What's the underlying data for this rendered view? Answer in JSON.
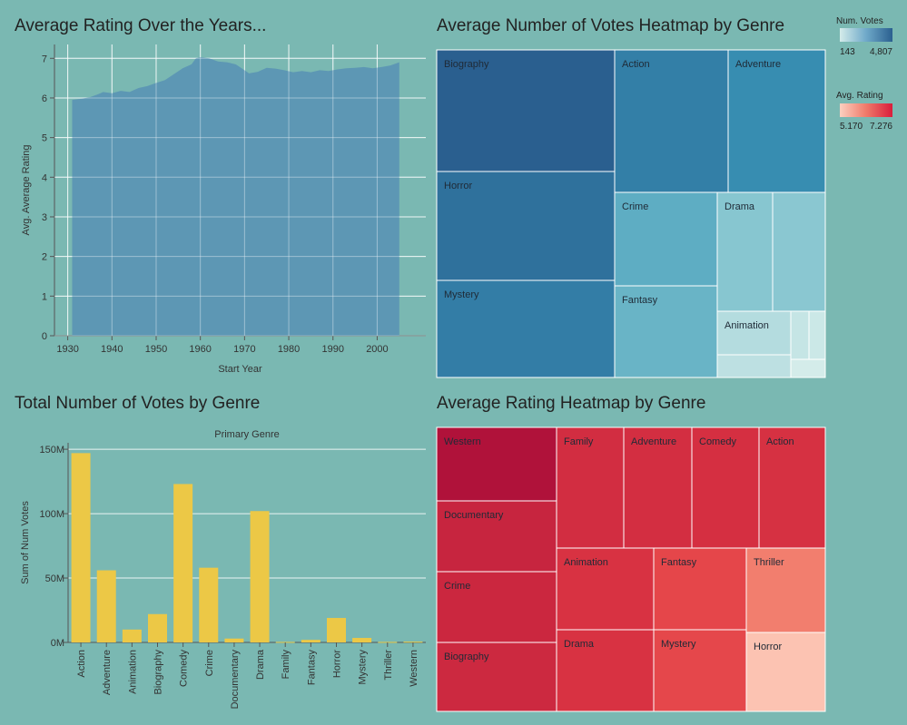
{
  "panels": {
    "rating_over_years": {
      "title": "Average Rating Over the Years..."
    },
    "votes_heatmap": {
      "title": "Average Number of Votes Heatmap by Genre"
    },
    "votes_by_genre": {
      "title": "Total Number of Votes by Genre"
    },
    "rating_heatmap": {
      "title": "Average Rating Heatmap by Genre"
    }
  },
  "legends": {
    "num_votes": {
      "title": "Num. Votes",
      "min_label": "143",
      "max_label": "4,807",
      "color_low": "#d4ecea",
      "color_high": "#2a5f8f"
    },
    "avg_rating": {
      "title": "Avg. Rating",
      "min_label": "5.170",
      "max_label": "7.276",
      "color_low": "#fcd0c0",
      "color_high": "#d91d3c"
    }
  },
  "chart_data": [
    {
      "type": "area",
      "title": "Average Rating Over the Years...",
      "xlabel": "Start Year",
      "ylabel": "Avg. Average Rating",
      "xlim": [
        1927,
        2011
      ],
      "ylim": [
        0,
        7.35
      ],
      "xticks": [
        "1930",
        "1940",
        "1950",
        "1960",
        "1970",
        "1980",
        "1990",
        "2000"
      ],
      "yticks": [
        "0",
        "1",
        "2",
        "3",
        "4",
        "5",
        "6",
        "7"
      ],
      "grid": true,
      "color": "#5a93b4",
      "x": [
        1931,
        1933,
        1935,
        1937,
        1938,
        1940,
        1942,
        1944,
        1946,
        1948,
        1950,
        1952,
        1954,
        1956,
        1958,
        1959,
        1960,
        1962,
        1964,
        1966,
        1968,
        1970,
        1971,
        1973,
        1975,
        1977,
        1979,
        1981,
        1983,
        1985,
        1987,
        1989,
        1991,
        1993,
        1995,
        1997,
        1999,
        2001,
        2003,
        2005
      ],
      "y": [
        5.95,
        5.98,
        6.02,
        6.1,
        6.15,
        6.12,
        6.18,
        6.15,
        6.25,
        6.3,
        6.38,
        6.45,
        6.6,
        6.75,
        6.85,
        7.0,
        7.03,
        7.0,
        6.92,
        6.9,
        6.85,
        6.7,
        6.62,
        6.66,
        6.76,
        6.74,
        6.7,
        6.65,
        6.68,
        6.65,
        6.7,
        6.68,
        6.72,
        6.75,
        6.76,
        6.78,
        6.75,
        6.78,
        6.82,
        6.9
      ]
    },
    {
      "type": "heatmap",
      "title": "Average Number of Votes Heatmap by Genre",
      "labels": [
        "Biography",
        "Action",
        "Adventure",
        "Horror",
        "Crime",
        "Drama",
        "Mystery",
        "Fantasy",
        "Animation"
      ],
      "cells": [
        {
          "label": "Biography",
          "value": 4807
        },
        {
          "label": "Action",
          "value": 3900
        },
        {
          "label": "Adventure",
          "value": 3500
        },
        {
          "label": "Horror",
          "value": 4300
        },
        {
          "label": "Crime",
          "value": 2400
        },
        {
          "label": "Drama",
          "value": 1500
        },
        {
          "label": "",
          "value": 1450
        },
        {
          "label": "Mystery",
          "value": 3950
        },
        {
          "label": "Fantasy",
          "value": 2150
        },
        {
          "label": "Animation",
          "value": 700
        },
        {
          "label": "",
          "value": 550
        },
        {
          "label": "",
          "value": 400
        },
        {
          "label": "",
          "value": 300
        },
        {
          "label": "",
          "value": 143
        }
      ]
    },
    {
      "type": "bar",
      "title": "Total Number of Votes by Genre",
      "column_header": "Primary Genre",
      "ylabel": "Sum of Num Votes",
      "ylim": [
        0,
        155
      ],
      "yticks": [
        "0M",
        "50M",
        "100M",
        "150M"
      ],
      "grid": true,
      "color": "#ecc846",
      "categories": [
        "Action",
        "Adventure",
        "Animation",
        "Biography",
        "Comedy",
        "Crime",
        "Documentary",
        "Drama",
        "Family",
        "Fantasy",
        "Horror",
        "Mystery",
        "Thriller",
        "Western"
      ],
      "values": [
        147,
        56,
        10,
        22,
        123,
        58,
        3,
        102,
        0.4,
        2,
        19,
        3.5,
        0.4,
        0.6
      ],
      "value_unit": "M"
    },
    {
      "type": "heatmap",
      "title": "Average Rating Heatmap by Genre",
      "labels": [
        "Western",
        "Family",
        "Adventure",
        "Comedy",
        "Action",
        "Documentary",
        "Animation",
        "Fantasy",
        "Thriller",
        "Crime",
        "Drama",
        "Mystery",
        "Horror",
        "Biography"
      ],
      "cells": [
        {
          "label": "Western",
          "value": 7.276
        },
        {
          "label": "Documentary",
          "value": 6.95
        },
        {
          "label": "Crime",
          "value": 6.9
        },
        {
          "label": "Biography",
          "value": 6.88
        },
        {
          "label": "Family",
          "value": 6.8
        },
        {
          "label": "Adventure",
          "value": 6.78
        },
        {
          "label": "Comedy",
          "value": 6.76
        },
        {
          "label": "Action",
          "value": 6.74
        },
        {
          "label": "Animation",
          "value": 6.72
        },
        {
          "label": "Drama",
          "value": 6.72
        },
        {
          "label": "Fantasy",
          "value": 6.42
        },
        {
          "label": "Mystery",
          "value": 6.4
        },
        {
          "label": "Thriller",
          "value": 5.75
        },
        {
          "label": "Horror",
          "value": 5.17
        }
      ]
    }
  ]
}
